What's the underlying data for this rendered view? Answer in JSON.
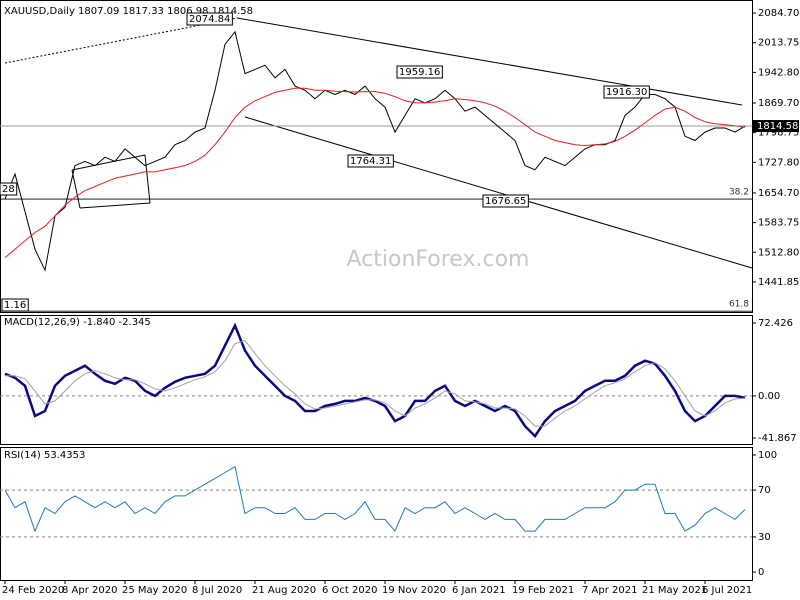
{
  "chart_data": [
    {
      "type": "line",
      "title": "XAUUSD,Daily  1807.09 1817.33 1806.98 1814.58",
      "watermark": "ActionForex.com",
      "ylim": [
        1370,
        2104
      ],
      "yticks": [
        {
          "value": 2084.7,
          "label": "2084.70"
        },
        2013.75,
        {
          "value": 1942.8,
          "label": "1942.80"
        },
        {
          "value": 1869.7,
          "label": "1869.70"
        },
        1798.75,
        {
          "value": 1727.8,
          "label": "1727.80"
        },
        {
          "value": 1654.7,
          "label": "1654.70"
        },
        1583.75,
        {
          "value": 1512.8,
          "label": "1512.80"
        },
        1441.85
      ],
      "grid": false,
      "last_price": 1814.58,
      "fib_levels": [
        {
          "name": "38.2",
          "price": 1640
        },
        {
          "name": "61.8",
          "price": 1372
        }
      ],
      "annotations": [
        "2074.84",
        "1959.16",
        "1916.30",
        "1764.31",
        "1676.65",
        "1.16",
        "28"
      ],
      "series": [
        {
          "color": "#000000",
          "values": [
            1640,
            1700,
            1610,
            1520,
            1470,
            1600,
            1620,
            1720,
            1730,
            1720,
            1740,
            1730,
            1760,
            1740,
            1720,
            1730,
            1740,
            1770,
            1780,
            1800,
            1810,
            1900,
            2010,
            2040,
            1940,
            1950,
            1960,
            1930,
            1950,
            1910,
            1900,
            1880,
            1900,
            1890,
            1900,
            1890,
            1910,
            1880,
            1860,
            1800,
            1840,
            1880,
            1870,
            1880,
            1900,
            1880,
            1850,
            1860,
            1840,
            1820,
            1800,
            1780,
            1720,
            1710,
            1740,
            1730,
            1720,
            1740,
            1760,
            1770,
            1770,
            1780,
            1840,
            1860,
            1890,
            1890,
            1880,
            1860,
            1790,
            1780,
            1800,
            1810,
            1810,
            1800,
            1814.58
          ]
        },
        {
          "color": "#e02020",
          "values": [
            1500,
            1520,
            1540,
            1560,
            1575,
            1600,
            1625,
            1645,
            1660,
            1670,
            1680,
            1690,
            1695,
            1700,
            1705,
            1705,
            1710,
            1715,
            1720,
            1730,
            1745,
            1770,
            1800,
            1835,
            1860,
            1875,
            1885,
            1895,
            1900,
            1905,
            1905,
            1900,
            1900,
            1898,
            1897,
            1896,
            1897,
            1897,
            1893,
            1885,
            1875,
            1870,
            1870,
            1872,
            1875,
            1880,
            1878,
            1875,
            1870,
            1862,
            1850,
            1835,
            1818,
            1800,
            1790,
            1780,
            1775,
            1770,
            1768,
            1770,
            1772,
            1778,
            1790,
            1805,
            1822,
            1840,
            1855,
            1860,
            1850,
            1835,
            1825,
            1820,
            1818,
            1815,
            1812
          ]
        }
      ]
    },
    {
      "type": "line",
      "title": "MACD(12,26,9) -1.840 -2.345",
      "ylim": [
        -47.8,
        79.4
      ],
      "yticks": [
        72.426,
        {
          "value": 0,
          "label": "0.00"
        },
        -41.867
      ],
      "levels": [
        0
      ],
      "series": [
        {
          "color": "#0a0a80",
          "values": [
            22,
            18,
            10,
            -20,
            -15,
            10,
            20,
            25,
            30,
            22,
            15,
            12,
            18,
            15,
            5,
            0,
            8,
            14,
            18,
            20,
            22,
            30,
            50,
            70,
            45,
            30,
            20,
            10,
            0,
            -5,
            -15,
            -15,
            -10,
            -8,
            -5,
            -5,
            -2,
            -5,
            -10,
            -25,
            -20,
            -5,
            -5,
            5,
            10,
            -5,
            -10,
            -5,
            -10,
            -15,
            -10,
            -15,
            -30,
            -40,
            -25,
            -15,
            -10,
            -5,
            5,
            10,
            15,
            15,
            20,
            30,
            35,
            32,
            20,
            5,
            -15,
            -25,
            -20,
            -10,
            0,
            0,
            -1.84
          ]
        },
        {
          "color": "#a0a0a0",
          "values": [
            20,
            20,
            17,
            5,
            -8,
            -5,
            5,
            15,
            22,
            25,
            22,
            18,
            16,
            16,
            12,
            7,
            5,
            8,
            12,
            16,
            19,
            24,
            35,
            52,
            55,
            42,
            30,
            20,
            10,
            2,
            -8,
            -13,
            -12,
            -10,
            -8,
            -6,
            -4,
            -4,
            -7,
            -15,
            -20,
            -12,
            -8,
            -2,
            5,
            2,
            -5,
            -6,
            -8,
            -12,
            -12,
            -13,
            -20,
            -30,
            -30,
            -22,
            -15,
            -10,
            -3,
            4,
            10,
            13,
            17,
            24,
            30,
            33,
            27,
            15,
            0,
            -15,
            -20,
            -15,
            -7,
            -3,
            -2.345
          ]
        }
      ]
    },
    {
      "type": "line",
      "title": "RSI(14) 53.4353",
      "ylim": [
        -6.8,
        105.1
      ],
      "yticks": [
        100,
        70,
        30,
        0
      ],
      "levels": [
        70,
        30
      ],
      "categories": [
        "24 Feb 2020",
        null,
        null,
        null,
        null,
        null,
        "8 Apr 2020",
        null,
        null,
        null,
        null,
        null,
        "25 May 2020",
        null,
        null,
        null,
        null,
        null,
        null,
        "8 Jul 2020",
        null,
        null,
        null,
        null,
        null,
        "21 Aug 2020",
        null,
        null,
        null,
        null,
        null,
        null,
        "6 Oct 2020",
        null,
        null,
        null,
        null,
        null,
        "19 Nov 2020",
        null,
        null,
        null,
        null,
        null,
        null,
        "6 Jan 2021",
        null,
        null,
        null,
        null,
        null,
        "19 Feb 2021",
        null,
        null,
        null,
        null,
        null,
        null,
        "7 Apr 2021",
        null,
        null,
        null,
        null,
        null,
        "21 May 2021",
        null,
        null,
        null,
        null,
        null,
        "6 Jul 2021",
        null,
        null,
        null,
        null
      ],
      "series": [
        {
          "color": "#1e78c8",
          "values": [
            70,
            55,
            60,
            35,
            55,
            50,
            60,
            65,
            60,
            55,
            60,
            55,
            60,
            50,
            55,
            50,
            60,
            65,
            65,
            70,
            75,
            80,
            85,
            90,
            50,
            55,
            55,
            50,
            50,
            55,
            45,
            45,
            50,
            50,
            45,
            50,
            60,
            45,
            45,
            35,
            55,
            50,
            55,
            55,
            60,
            50,
            55,
            50,
            45,
            50,
            45,
            45,
            35,
            35,
            45,
            45,
            45,
            50,
            55,
            55,
            55,
            60,
            70,
            70,
            75,
            75,
            50,
            50,
            35,
            40,
            50,
            55,
            50,
            45,
            53.4353
          ]
        }
      ]
    }
  ]
}
